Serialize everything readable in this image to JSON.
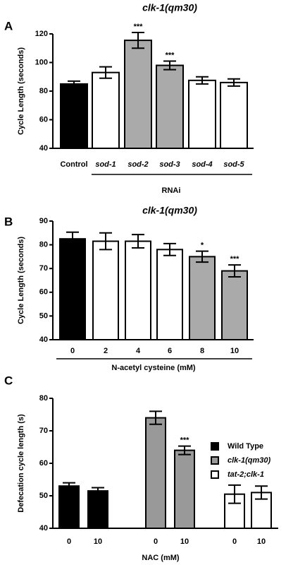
{
  "chart_data": [
    {
      "type": "bar",
      "panel": "A",
      "title": "clk-1(qm30)",
      "ylabel": "Cycle Length (seconds)",
      "xlabel": "RNAi",
      "categories": [
        "Control",
        "sod-1",
        "sod-2",
        "sod-3",
        "sod-4",
        "sod-5"
      ],
      "values": [
        85,
        93,
        115.5,
        98,
        87.5,
        86
      ],
      "errors": [
        2,
        4,
        5.5,
        3,
        2.5,
        2.5
      ],
      "colors": [
        "#000000",
        "#ffffff",
        "#aaaaaa",
        "#aaaaaa",
        "#ffffff",
        "#ffffff"
      ],
      "annotations": [
        null,
        null,
        "***",
        "***",
        null,
        null
      ],
      "ylim": [
        40,
        120
      ],
      "yticks": [
        40,
        60,
        80,
        100,
        120
      ]
    },
    {
      "type": "bar",
      "panel": "B",
      "title": "clk-1(qm30)",
      "ylabel": "Cycle Length (seconds)",
      "xlabel": "N-acetyl cysteine (mM)",
      "categories": [
        "0",
        "2",
        "4",
        "6",
        "8",
        "10"
      ],
      "values": [
        82.5,
        81.5,
        81.5,
        78,
        75,
        69
      ],
      "errors": [
        2.8,
        3.5,
        2.8,
        2.5,
        2.3,
        2.5
      ],
      "colors": [
        "#000000",
        "#ffffff",
        "#ffffff",
        "#ffffff",
        "#aaaaaa",
        "#aaaaaa"
      ],
      "annotations": [
        null,
        null,
        null,
        null,
        "*",
        "***"
      ],
      "ylim": [
        40,
        90
      ],
      "yticks": [
        40,
        50,
        60,
        70,
        80,
        90
      ]
    },
    {
      "type": "grouped-bar",
      "panel": "C",
      "ylabel": "Defecation cycle length (s)",
      "xlabel": "NAC (mM)",
      "categories": [
        "0",
        "10",
        "0",
        "10",
        "0",
        "10"
      ],
      "series": [
        {
          "name": "Wild Type",
          "color": "#000000",
          "values": [
            53,
            51.5,
            null,
            null,
            null,
            null
          ],
          "errors": [
            1,
            1,
            null,
            null,
            null,
            null
          ]
        },
        {
          "name": "clk-1(qm30)",
          "color": "#999999",
          "values": [
            null,
            null,
            74,
            64,
            null,
            null
          ],
          "errors": [
            null,
            null,
            2,
            1.3,
            null,
            null
          ]
        },
        {
          "name": "tat-2;clk-1",
          "color": "#ffffff",
          "values": [
            null,
            null,
            null,
            null,
            50.5,
            51
          ],
          "errors": [
            null,
            null,
            null,
            null,
            2.8,
            2
          ]
        }
      ],
      "annotations": [
        null,
        null,
        null,
        "***",
        null,
        null
      ],
      "ylim": [
        40,
        80
      ],
      "yticks": [
        40,
        50,
        60,
        70,
        80
      ]
    }
  ]
}
